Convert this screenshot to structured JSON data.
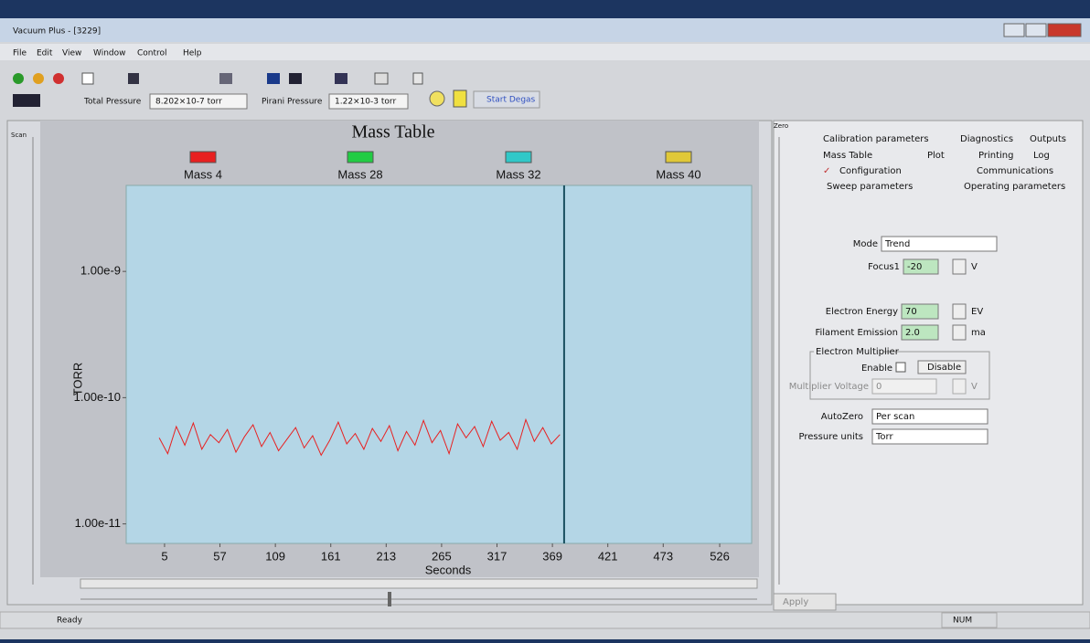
{
  "window": {
    "title": "Vacuum Plus - [3229]",
    "menu": [
      "File",
      "Edit",
      "View",
      "Window",
      "Control",
      "Help"
    ],
    "status": "Ready",
    "num": "NUM",
    "scan_label": "Scan",
    "zero_label": "Zero"
  },
  "toolbar": {
    "total_pressure_label": "Total Pressure",
    "total_pressure": "8.202×10-7 torr",
    "pirani_label": "Pirani Pressure",
    "pirani": "1.22×10-3 torr",
    "degas": "Start Degas"
  },
  "chart_data": {
    "type": "line",
    "title": "Mass Table",
    "series": [
      {
        "name": "Mass 4",
        "color": "#e82020",
        "values": [
          4.8e-11,
          3.6e-11,
          5.9e-11,
          4.2e-11,
          6.3e-11,
          3.9e-11,
          5.1e-11,
          4.4e-11,
          5.6e-11,
          3.7e-11,
          4.9e-11,
          6.1e-11,
          4.1e-11,
          5.3e-11,
          3.8e-11,
          4.7e-11,
          5.8e-11,
          4e-11,
          5e-11,
          3.5e-11,
          4.6e-11,
          6.4e-11,
          4.3e-11,
          5.2e-11,
          3.9e-11,
          5.7e-11,
          4.5e-11,
          6e-11,
          3.8e-11,
          5.4e-11,
          4.2e-11,
          6.6e-11,
          4.4e-11,
          5.5e-11,
          3.6e-11,
          6.2e-11,
          4.8e-11,
          5.9e-11,
          4.1e-11,
          6.5e-11,
          4.6e-11,
          5.3e-11,
          3.9e-11,
          6.7e-11,
          4.5e-11,
          5.8e-11,
          4.3e-11,
          5.1e-11
        ]
      },
      {
        "name": "Mass 28",
        "color": "#22cc44"
      },
      {
        "name": "Mass 32",
        "color": "#30c8c8"
      },
      {
        "name": "Mass 40",
        "color": "#e0c838"
      }
    ],
    "x": [
      0,
      8,
      16,
      24,
      32,
      40,
      48,
      56,
      64,
      72,
      80,
      88,
      96,
      104,
      112,
      120,
      128,
      136,
      144,
      152,
      160,
      168,
      176,
      184,
      192,
      200,
      208,
      216,
      224,
      232,
      240,
      248,
      256,
      264,
      272,
      280,
      288,
      296,
      304,
      312,
      320,
      328,
      336,
      344,
      352,
      360,
      368,
      376
    ],
    "xlim": [
      -31,
      556
    ],
    "xticks": [
      5,
      57,
      109,
      161,
      213,
      265,
      317,
      369,
      421,
      473,
      526
    ],
    "xlabel": "Seconds",
    "ylim": [
      7e-12,
      4.8e-09
    ],
    "yticks": [
      {
        "value": 1e-09,
        "label": "1.00e-9"
      },
      {
        "value": 1e-10,
        "label": "1.00e-10"
      },
      {
        "value": 1e-11,
        "label": "1.00e-11"
      }
    ],
    "ylabel": "TORR",
    "log_y": true,
    "cursor_x": 380
  },
  "settings": {
    "tabs": [
      "Calibration parameters",
      "Diagnostics",
      "Outputs",
      "Mass Table",
      "Plot",
      "Printing",
      "Log",
      "Configuration",
      "Communications",
      "Sweep parameters",
      "Operating parameters"
    ],
    "mode": {
      "label": "Mode",
      "value": "Trend"
    },
    "focus": {
      "label": "Focus1",
      "value": "-20",
      "unit": "V"
    },
    "electron_energy": {
      "label": "Electron Energy",
      "value": "70",
      "unit": "EV"
    },
    "filament_emission": {
      "label": "Filament Emission",
      "value": "2.0",
      "unit": "ma"
    },
    "multiplier": {
      "group": "Electron Multiplier",
      "enable": "Enable",
      "disable": "Disable",
      "voltage_label": "Multiplier Voltage",
      "voltage": "0",
      "unit": "V"
    },
    "autozero": {
      "label": "AutoZero",
      "value": "Per scan"
    },
    "pressure_units": {
      "label": "Pressure units",
      "value": "Torr"
    },
    "apply": "Apply"
  }
}
